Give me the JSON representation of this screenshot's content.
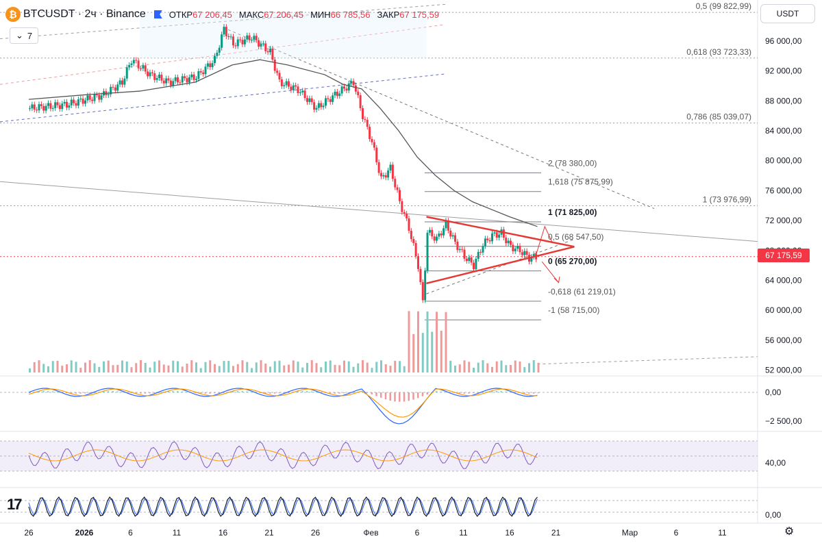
{
  "header": {
    "symbol": "BTCUSDT · 2ч · Binance",
    "logo_letter": "₿",
    "open_label": "ОТКР",
    "open_value": "67 206,45",
    "high_label": "МАКС",
    "high_value": "67 206,45",
    "low_label": "МИН",
    "low_value": "66 785,56",
    "close_label": "ЗАКР",
    "close_value": "67 175,59"
  },
  "indicators_toggle": {
    "icon": "chevron-down-icon",
    "count": "7"
  },
  "currency_button": "USDT",
  "current_price": "67 175,59",
  "colors": {
    "up": "#089981",
    "down": "#f23645",
    "accent": "#2962ff",
    "ma": "#555555",
    "triangle": "#e53935",
    "rsi_bg": "#ede7f6",
    "rsi_line": "#7e57c2",
    "signal": "#ff9800",
    "macd": "#2962ff"
  },
  "chart_data": {
    "type": "candlestick",
    "title": "BTCUSDT · 2ч · Binance",
    "ylim": [
      51500,
      101300
    ],
    "price_axis_ticks": [
      "96 000,00",
      "92 000,00",
      "88 000,00",
      "84 000,00",
      "80 000,00",
      "76 000,00",
      "72 000,00",
      "68 000,00",
      "64 000,00",
      "60 000,00",
      "56 000,00",
      "52 000,00"
    ],
    "tick_values": [
      96000,
      92000,
      88000,
      84000,
      80000,
      76000,
      72000,
      68000,
      64000,
      60000,
      56000,
      52000
    ],
    "time_axis": [
      {
        "label": "26",
        "day": 0
      },
      {
        "label": "2026",
        "day": 6
      },
      {
        "label": "6",
        "day": 11
      },
      {
        "label": "11",
        "day": 16
      },
      {
        "label": "16",
        "day": 21
      },
      {
        "label": "21",
        "day": 26
      },
      {
        "label": "26",
        "day": 31
      },
      {
        "label": "Фев",
        "day": 37
      },
      {
        "label": "6",
        "day": 42
      },
      {
        "label": "11",
        "day": 47
      },
      {
        "label": "16",
        "day": 52
      },
      {
        "label": "21",
        "day": 57
      },
      {
        "label": "Мар",
        "day": 65
      },
      {
        "label": "6",
        "day": 70
      },
      {
        "label": "11",
        "day": 75
      }
    ],
    "price_path": [
      {
        "day": 0,
        "price": 87000
      },
      {
        "day": 4,
        "price": 87500
      },
      {
        "day": 8,
        "price": 88800
      },
      {
        "day": 10,
        "price": 90500
      },
      {
        "day": 11,
        "price": 93500
      },
      {
        "day": 13,
        "price": 91500
      },
      {
        "day": 15,
        "price": 90500
      },
      {
        "day": 18,
        "price": 91200
      },
      {
        "day": 20,
        "price": 93500
      },
      {
        "day": 21,
        "price": 97600
      },
      {
        "day": 22,
        "price": 95600
      },
      {
        "day": 24,
        "price": 96500
      },
      {
        "day": 26,
        "price": 94500
      },
      {
        "day": 27,
        "price": 90500
      },
      {
        "day": 29,
        "price": 89500
      },
      {
        "day": 31,
        "price": 87000
      },
      {
        "day": 33,
        "price": 88800
      },
      {
        "day": 35,
        "price": 90500
      },
      {
        "day": 36,
        "price": 86000
      },
      {
        "day": 37,
        "price": 82500
      },
      {
        "day": 38,
        "price": 77500
      },
      {
        "day": 39,
        "price": 79000
      },
      {
        "day": 40,
        "price": 74500
      },
      {
        "day": 41,
        "price": 71000
      },
      {
        "day": 42,
        "price": 66000
      },
      {
        "day": 42.5,
        "price": 61000
      },
      {
        "day": 43,
        "price": 70500
      },
      {
        "day": 44,
        "price": 69500
      },
      {
        "day": 45,
        "price": 71500
      },
      {
        "day": 46,
        "price": 69000
      },
      {
        "day": 47,
        "price": 67200
      },
      {
        "day": 48,
        "price": 66000
      },
      {
        "day": 49,
        "price": 68800
      },
      {
        "day": 50,
        "price": 70000
      },
      {
        "day": 51,
        "price": 70300
      },
      {
        "day": 52,
        "price": 68500
      },
      {
        "day": 53,
        "price": 68000
      },
      {
        "day": 54,
        "price": 67000
      },
      {
        "day": 55,
        "price": 67175
      }
    ],
    "moving_average": [
      {
        "day": 0,
        "price": 88200
      },
      {
        "day": 6,
        "price": 88800
      },
      {
        "day": 12,
        "price": 89300
      },
      {
        "day": 18,
        "price": 90500
      },
      {
        "day": 22,
        "price": 92800
      },
      {
        "day": 25,
        "price": 93500
      },
      {
        "day": 28,
        "price": 92800
      },
      {
        "day": 32,
        "price": 91500
      },
      {
        "day": 34,
        "price": 90200
      },
      {
        "day": 36,
        "price": 89600
      },
      {
        "day": 38,
        "price": 87000
      },
      {
        "day": 40,
        "price": 84000
      },
      {
        "day": 42,
        "price": 80500
      },
      {
        "day": 44,
        "price": 78000
      },
      {
        "day": 46,
        "price": 76000
      },
      {
        "day": 48,
        "price": 74500
      },
      {
        "day": 50,
        "price": 73500
      },
      {
        "day": 52,
        "price": 72500
      },
      {
        "day": 55,
        "price": 71200
      }
    ],
    "fib_retracement_levels": [
      {
        "label": "0,5 (99 822,99)",
        "price": 99822.99
      },
      {
        "label": "0,618 (93 723,33)",
        "price": 93723.33
      },
      {
        "label": "0,786 (85 039,07)",
        "price": 85039.07
      },
      {
        "label": "1 (73 976,99)",
        "price": 73976.99
      }
    ],
    "fib_extension_levels": [
      {
        "label": "2 (78 380,00)",
        "price": 78380.0,
        "bold": false
      },
      {
        "label": "1,618 (75 875,99)",
        "price": 75875.99,
        "bold": false
      },
      {
        "label": "1 (71 825,00)",
        "price": 71825.0,
        "bold": true
      },
      {
        "label": "0,5 (68 547,50)",
        "price": 68547.5,
        "bold": false
      },
      {
        "label": "0 (65 270,00)",
        "price": 65270.0,
        "bold": true
      },
      {
        "label": "-0,618 (61 219,01)",
        "price": 61219.01,
        "bold": false
      },
      {
        "label": "-1 (58 715,00)",
        "price": 58715.0,
        "bold": false
      }
    ],
    "triangle": {
      "upper_start": {
        "day": 43,
        "price": 72500
      },
      "lower_start": {
        "day": 43,
        "price": 63600
      },
      "apex": {
        "day": 59,
        "price": 68500
      }
    },
    "macd": {
      "axis_labels": [
        "0,00",
        "−2 500,00"
      ],
      "tick_values": [
        0,
        -2500
      ]
    },
    "rsi": {
      "axis_labels": [
        "40,00"
      ],
      "tick_values": [
        40
      ]
    },
    "stoch": {
      "axis_labels": [
        "0,00"
      ],
      "tick_values": [
        0
      ]
    }
  }
}
